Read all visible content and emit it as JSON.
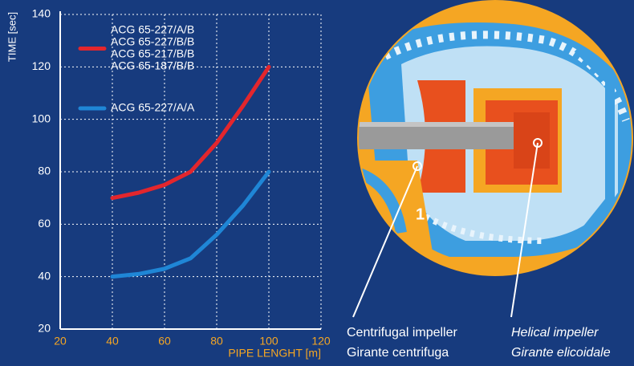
{
  "chart_data": {
    "type": "line",
    "x_label": "PIPE LENGHT [m]",
    "y_label": "TIME [sec]",
    "x": [
      40,
      50,
      60,
      70,
      80,
      90,
      100
    ],
    "series": [
      {
        "name": [
          "ACG 65-227/A/B",
          "ACG 65-227/B/B",
          "ACG 65-217/B/B",
          "ACG 65-187/B/B"
        ],
        "color": "#e3262d",
        "values": [
          70,
          72,
          75,
          80,
          91,
          105,
          120
        ]
      },
      {
        "name": "ACG 65-227/A/A",
        "color": "#1f86d6",
        "values": [
          40,
          41,
          43,
          47,
          56,
          67,
          80
        ]
      }
    ],
    "xlim": [
      20,
      120
    ],
    "xticks": [
      20,
      40,
      60,
      80,
      100,
      120
    ],
    "ylim": [
      20,
      140
    ],
    "yticks": [
      20,
      40,
      60,
      80,
      100,
      120,
      140
    ],
    "grid": true,
    "annotations": [
      "1",
      "Centrifugal impeller",
      "Girante centrifuga",
      "Helical impeller",
      "Girante elicoidale"
    ]
  }
}
